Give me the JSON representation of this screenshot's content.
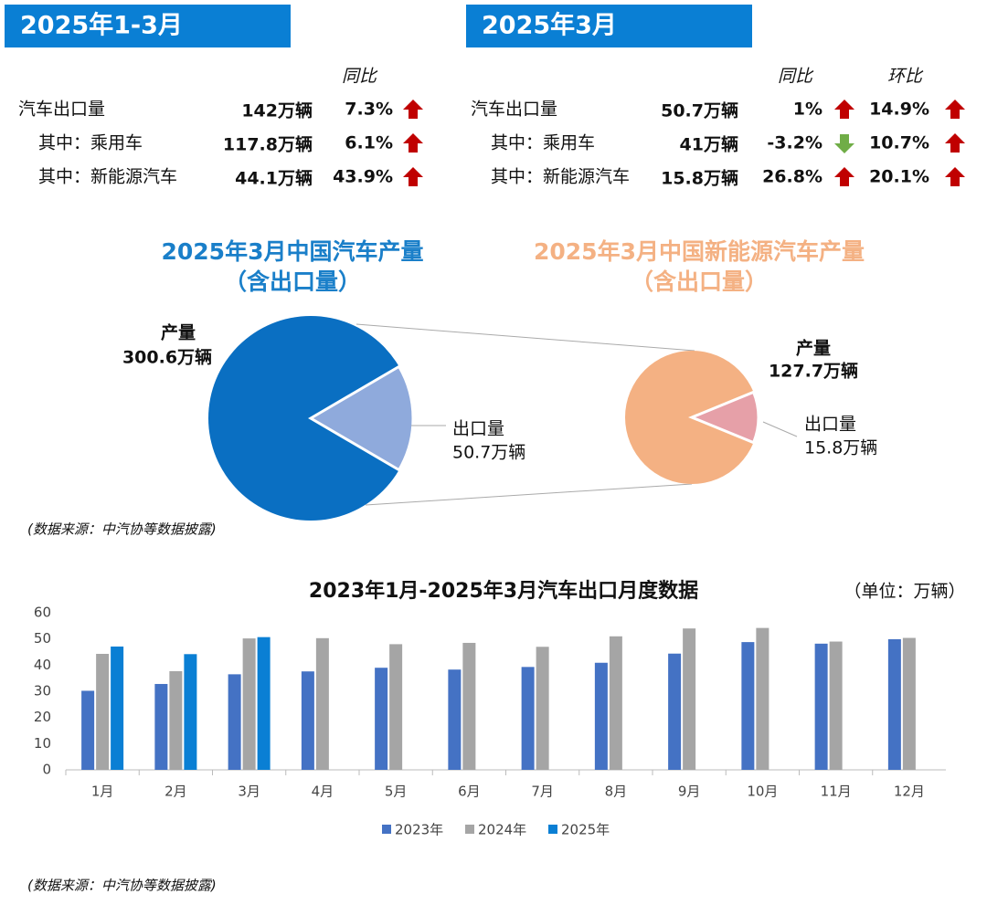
{
  "panels": [
    {
      "title": "2025年1-3月",
      "headers": [
        "同比"
      ],
      "rows": [
        [
          "汽车出口量",
          "142万辆",
          "7.3%"
        ],
        [
          "其中：乘用车",
          "117.8万辆",
          "6.1%"
        ],
        [
          "其中：新能源汽车",
          "44.1万辆",
          "43.9%"
        ]
      ]
    },
    {
      "title": "2025年3月",
      "headers": [
        "同比",
        "环比"
      ],
      "rows": [
        [
          "汽车出口量",
          "50.7万辆",
          "1%",
          "14.9%"
        ],
        [
          "其中：乘用车",
          "41万辆",
          "-3.2%",
          "10.7%"
        ],
        [
          "其中：新能源汽车",
          "15.8万辆",
          "26.8%",
          "20.1%"
        ]
      ]
    }
  ],
  "chart_data": [
    {
      "type": "pie",
      "title": "2025年3月中国汽车产量",
      "subtitle": "（含出口量）",
      "categories": [
        "产量",
        "出口量"
      ],
      "values": [
        300.6,
        50.7
      ],
      "value_labels": [
        "300.6万辆",
        "50.7万辆"
      ],
      "colors": [
        "#0a6fc2",
        "#8faadc"
      ],
      "title_color": "#1a7fc9"
    },
    {
      "type": "pie",
      "title": "2025年3月中国新能源汽车产量",
      "subtitle": "（含出口量）",
      "categories": [
        "产量",
        "出口量"
      ],
      "values": [
        127.7,
        15.8
      ],
      "value_labels": [
        "127.7万辆",
        "15.8万辆"
      ],
      "colors": [
        "#f4b183",
        "#e6a0a8"
      ],
      "title_color": "#f4b183"
    },
    {
      "type": "bar",
      "title": "2023年1月-2025年3月汽车出口月度数据",
      "unit": "（单位：万辆）",
      "categories": [
        "1月",
        "2月",
        "3月",
        "4月",
        "5月",
        "6月",
        "7月",
        "8月",
        "9月",
        "10月",
        "11月",
        "12月"
      ],
      "series": [
        {
          "name": "2023年",
          "color": "#4472c4",
          "values": [
            30.2,
            32.8,
            36.5,
            37.6,
            39,
            38.3,
            39.3,
            40.9,
            44.4,
            48.8,
            48.2,
            49.9
          ]
        },
        {
          "name": "2024年",
          "color": "#a5a5a5",
          "values": [
            44.3,
            37.7,
            50.2,
            50.3,
            48,
            48.5,
            47,
            51,
            54,
            54.2,
            49,
            50.4
          ]
        },
        {
          "name": "2025年",
          "color": "#0a7fd4",
          "values": [
            47.1,
            44.2,
            50.7,
            null,
            null,
            null,
            null,
            null,
            null,
            null,
            null,
            null
          ]
        }
      ],
      "ylim": [
        0,
        60
      ],
      "yticks": [
        0,
        10,
        20,
        30,
        40,
        50,
        60
      ],
      "grid": false
    }
  ],
  "source_notes": [
    "(数据来源：中汽协等数据披露)",
    "(数据来源：中汽协等数据披露)"
  ]
}
